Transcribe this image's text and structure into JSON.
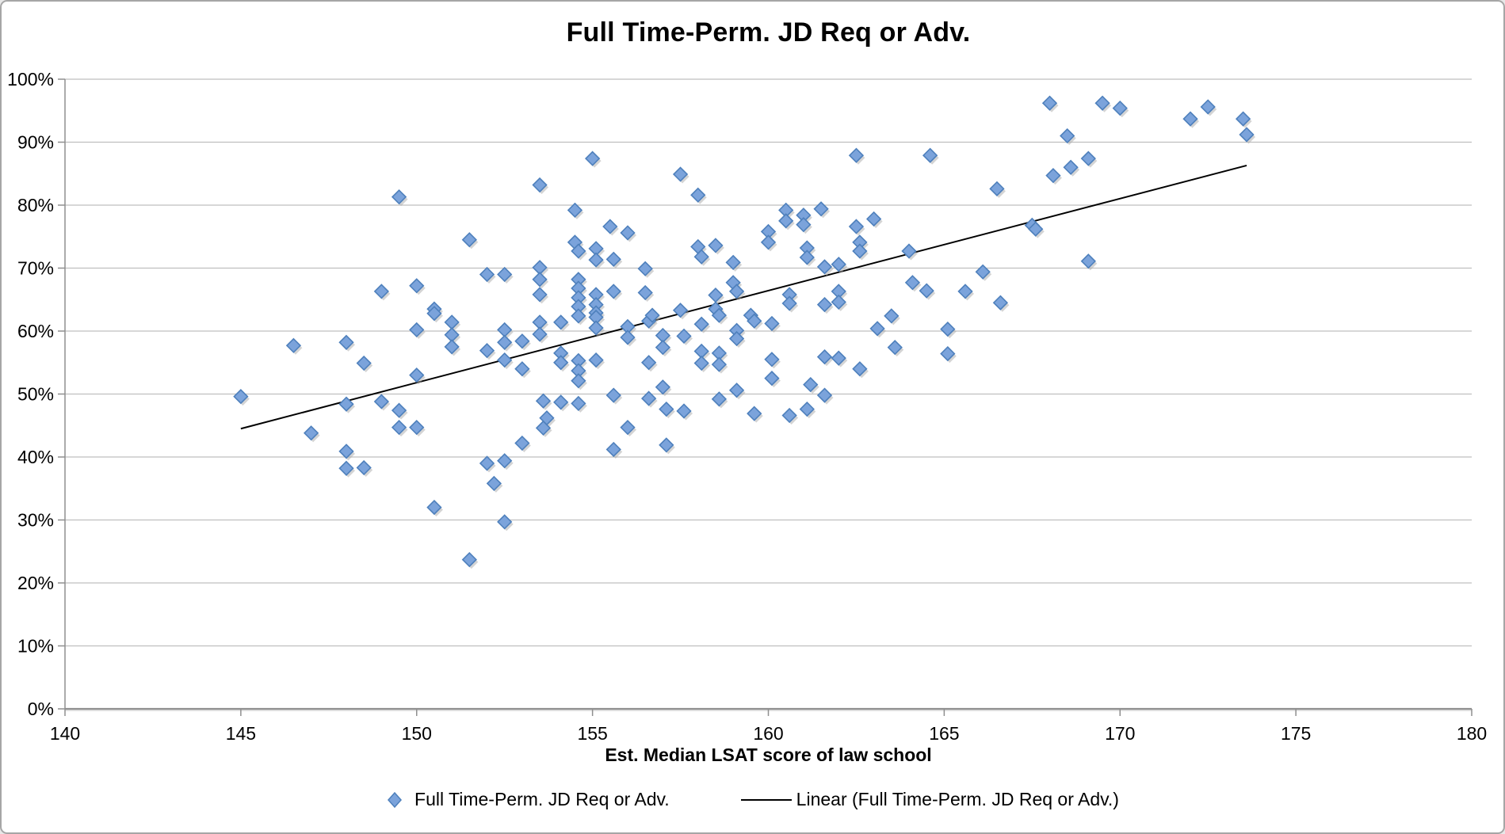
{
  "window": {
    "background": "#ffffff",
    "border_color": "#a6a6a6"
  },
  "styles": {
    "gridline_color": "#bfbfbf",
    "axis_color": "#8f8f8f",
    "axis_highlight": "#d9d9d9",
    "text_color": "#000000",
    "marker_fill": "#7ba3db",
    "marker_stroke": "#4e80bc",
    "marker_shadow": "#aaaaaa",
    "trendline_color": "#000000"
  },
  "chart_data": {
    "type": "scatter",
    "title": "Full Time-Perm. JD Req or Adv.",
    "xlabel": "Est. Median LSAT score of law school",
    "ylabel": "",
    "xlim": [
      140,
      180
    ],
    "ylim": [
      0,
      100
    ],
    "x_ticks": [
      140,
      145,
      150,
      155,
      160,
      165,
      170,
      175,
      180
    ],
    "y_ticks": [
      0,
      10,
      20,
      30,
      40,
      50,
      60,
      70,
      80,
      90,
      100
    ],
    "y_tick_suffix": "%",
    "grid": "horizontal-only",
    "legend_position": "bottom-center",
    "series": [
      {
        "name": "Full Time-Perm. JD Req or Adv.",
        "marker": "diamond",
        "fill": "#7ba3db",
        "stroke": "#4e80bc",
        "points": [
          [
            145.0,
            49.6
          ],
          [
            146.5,
            57.7
          ],
          [
            147.0,
            43.8
          ],
          [
            148.0,
            58.2
          ],
          [
            148.0,
            48.4
          ],
          [
            148.0,
            40.9
          ],
          [
            148.0,
            38.2
          ],
          [
            148.5,
            38.3
          ],
          [
            148.5,
            54.9
          ],
          [
            149.0,
            66.3
          ],
          [
            149.0,
            48.8
          ],
          [
            149.5,
            81.3
          ],
          [
            149.5,
            47.4
          ],
          [
            149.5,
            44.7
          ],
          [
            150.0,
            67.2
          ],
          [
            150.0,
            60.2
          ],
          [
            150.0,
            53.0
          ],
          [
            150.0,
            44.7
          ],
          [
            150.5,
            63.5
          ],
          [
            150.5,
            62.8
          ],
          [
            150.5,
            32.0
          ],
          [
            151.0,
            61.4
          ],
          [
            151.0,
            59.4
          ],
          [
            151.0,
            57.5
          ],
          [
            151.5,
            74.5
          ],
          [
            151.5,
            23.7
          ],
          [
            152.0,
            69.0
          ],
          [
            152.0,
            56.9
          ],
          [
            152.0,
            39.0
          ],
          [
            152.2,
            35.8
          ],
          [
            152.5,
            69.0
          ],
          [
            152.5,
            60.2
          ],
          [
            152.5,
            58.2
          ],
          [
            152.5,
            55.4
          ],
          [
            152.5,
            39.4
          ],
          [
            152.5,
            29.7
          ],
          [
            153.0,
            58.4
          ],
          [
            153.0,
            54.0
          ],
          [
            153.0,
            42.2
          ],
          [
            153.5,
            83.2
          ],
          [
            153.5,
            70.1
          ],
          [
            153.5,
            68.2
          ],
          [
            153.5,
            65.8
          ],
          [
            153.5,
            61.4
          ],
          [
            153.5,
            59.5
          ],
          [
            153.6,
            48.9
          ],
          [
            153.7,
            46.2
          ],
          [
            153.6,
            44.6
          ],
          [
            154.1,
            61.4
          ],
          [
            154.1,
            56.5
          ],
          [
            154.1,
            55.0
          ],
          [
            154.1,
            48.7
          ],
          [
            154.5,
            79.2
          ],
          [
            154.5,
            74.1
          ],
          [
            154.6,
            72.7
          ],
          [
            154.6,
            68.2
          ],
          [
            154.6,
            66.8
          ],
          [
            154.6,
            65.3
          ],
          [
            154.6,
            63.9
          ],
          [
            154.6,
            62.4
          ],
          [
            154.6,
            55.3
          ],
          [
            154.6,
            53.7
          ],
          [
            154.6,
            52.1
          ],
          [
            154.6,
            48.5
          ],
          [
            155.0,
            87.4
          ],
          [
            155.1,
            73.1
          ],
          [
            155.1,
            71.3
          ],
          [
            155.1,
            65.8
          ],
          [
            155.1,
            64.2
          ],
          [
            155.1,
            62.9
          ],
          [
            155.1,
            62.2
          ],
          [
            155.1,
            60.5
          ],
          [
            155.1,
            55.4
          ],
          [
            155.5,
            76.6
          ],
          [
            155.6,
            71.4
          ],
          [
            155.6,
            66.3
          ],
          [
            155.6,
            49.8
          ],
          [
            155.6,
            41.2
          ],
          [
            156.0,
            75.6
          ],
          [
            156.0,
            60.7
          ],
          [
            156.0,
            59.0
          ],
          [
            156.0,
            44.7
          ],
          [
            156.5,
            69.9
          ],
          [
            156.5,
            66.1
          ],
          [
            156.6,
            61.6
          ],
          [
            156.6,
            55.0
          ],
          [
            156.6,
            49.3
          ],
          [
            156.7,
            62.5
          ],
          [
            157.0,
            59.3
          ],
          [
            157.0,
            57.4
          ],
          [
            157.0,
            51.1
          ],
          [
            157.1,
            47.6
          ],
          [
            157.1,
            41.9
          ],
          [
            157.5,
            84.9
          ],
          [
            157.5,
            63.3
          ],
          [
            157.6,
            59.2
          ],
          [
            157.6,
            47.3
          ],
          [
            158.0,
            81.6
          ],
          [
            158.0,
            73.4
          ],
          [
            158.1,
            71.8
          ],
          [
            158.1,
            61.1
          ],
          [
            158.1,
            56.8
          ],
          [
            158.1,
            54.9
          ],
          [
            158.5,
            73.6
          ],
          [
            158.5,
            65.7
          ],
          [
            158.5,
            63.5
          ],
          [
            158.6,
            62.5
          ],
          [
            158.6,
            56.5
          ],
          [
            158.6,
            54.7
          ],
          [
            158.6,
            49.2
          ],
          [
            159.0,
            70.9
          ],
          [
            159.0,
            67.7
          ],
          [
            159.1,
            66.3
          ],
          [
            159.1,
            60.1
          ],
          [
            159.1,
            58.8
          ],
          [
            159.1,
            50.6
          ],
          [
            159.5,
            62.5
          ],
          [
            159.6,
            61.6
          ],
          [
            159.6,
            46.9
          ],
          [
            160.0,
            75.8
          ],
          [
            160.0,
            74.1
          ],
          [
            160.1,
            61.2
          ],
          [
            160.1,
            55.5
          ],
          [
            160.1,
            52.5
          ],
          [
            160.5,
            79.2
          ],
          [
            160.5,
            77.5
          ],
          [
            160.6,
            65.8
          ],
          [
            160.6,
            64.4
          ],
          [
            160.6,
            46.6
          ],
          [
            161.0,
            78.4
          ],
          [
            161.0,
            76.9
          ],
          [
            161.1,
            73.2
          ],
          [
            161.1,
            71.7
          ],
          [
            161.1,
            47.6
          ],
          [
            161.2,
            51.5
          ],
          [
            161.5,
            79.4
          ],
          [
            161.6,
            70.2
          ],
          [
            161.6,
            64.2
          ],
          [
            161.6,
            55.9
          ],
          [
            161.6,
            49.8
          ],
          [
            162.0,
            70.6
          ],
          [
            162.0,
            66.3
          ],
          [
            162.0,
            64.6
          ],
          [
            162.0,
            55.7
          ],
          [
            162.5,
            87.9
          ],
          [
            162.5,
            76.6
          ],
          [
            162.6,
            74.1
          ],
          [
            162.6,
            72.7
          ],
          [
            162.6,
            54.0
          ],
          [
            163.0,
            77.8
          ],
          [
            163.1,
            60.4
          ],
          [
            163.5,
            62.4
          ],
          [
            163.6,
            57.4
          ],
          [
            164.0,
            72.7
          ],
          [
            164.1,
            67.7
          ],
          [
            164.5,
            66.4
          ],
          [
            164.6,
            87.9
          ],
          [
            165.1,
            60.3
          ],
          [
            165.1,
            56.4
          ],
          [
            165.6,
            66.3
          ],
          [
            166.1,
            69.4
          ],
          [
            166.5,
            82.6
          ],
          [
            166.6,
            64.5
          ],
          [
            167.5,
            76.8
          ],
          [
            167.6,
            76.2
          ],
          [
            168.0,
            96.2
          ],
          [
            168.1,
            84.7
          ],
          [
            168.5,
            91.0
          ],
          [
            168.6,
            86.0
          ],
          [
            169.1,
            87.4
          ],
          [
            169.1,
            71.1
          ],
          [
            169.5,
            96.2
          ],
          [
            170.0,
            95.4
          ],
          [
            172.0,
            93.7
          ],
          [
            172.5,
            95.6
          ],
          [
            173.5,
            93.7
          ],
          [
            173.6,
            91.2
          ]
        ]
      }
    ],
    "trendline": {
      "label": "Linear (Full Time-Perm. JD Req or Adv.)",
      "color": "#000000",
      "start": [
        145.0,
        44.5
      ],
      "end": [
        173.6,
        86.3
      ]
    }
  }
}
